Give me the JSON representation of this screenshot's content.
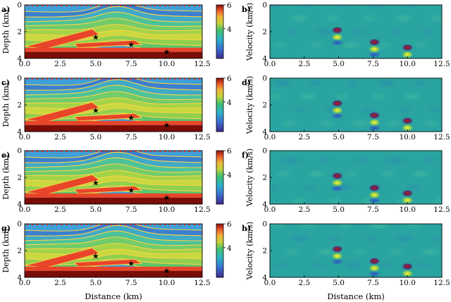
{
  "figure": {
    "colorbar": {
      "ticks": [
        "6",
        "4"
      ],
      "label": "Velocity (km/s)"
    },
    "model_axes": {
      "ylabel": "Depth (km)",
      "xlabel": "Distance (km)",
      "yticks": [
        "0",
        "2",
        "4"
      ],
      "xticks": [
        "0.0",
        "2.5",
        "5.0",
        "7.5",
        "10.0",
        "12.5"
      ]
    },
    "diff_axes": {
      "ylabel": "Velocity (km/s)",
      "xlabel": "Distance (km)",
      "yticks": [
        "0",
        "2",
        "4"
      ],
      "xticks": [
        "0.0",
        "2.5",
        "5.0",
        "7.5",
        "10.0",
        "12.5"
      ]
    },
    "rows": [
      {
        "left_label": "a)",
        "right_label": "b)"
      },
      {
        "left_label": "c)",
        "right_label": "d)"
      },
      {
        "left_label": "e)",
        "right_label": "f)"
      },
      {
        "left_label": "g)",
        "right_label": "h)"
      }
    ],
    "colors": {
      "water": "#3f9fd8",
      "deep": "#7a0d08",
      "diff_bg": "#2aa4a0",
      "source": "#ff2f2f"
    }
  },
  "chart_data": [
    {
      "type": "heatmap",
      "panel": "a",
      "title": "",
      "xlabel": "Distance (km)",
      "ylabel": "Depth (km)",
      "xlim": [
        0,
        12.5
      ],
      "ylim": [
        4,
        0
      ],
      "colorbar": {
        "range": [
          1.5,
          6
        ],
        "ticks": [
          4,
          6
        ],
        "label": "Velocity (km/s)"
      },
      "stars": [
        {
          "x": 5.0,
          "z": 2.4
        },
        {
          "x": 7.5,
          "z": 2.95
        },
        {
          "x": 10.0,
          "z": 3.5
        }
      ]
    },
    {
      "type": "heatmap",
      "panel": "b",
      "title": "",
      "xlabel": "Distance (km)",
      "ylabel": "Velocity (km/s)",
      "xlim": [
        0,
        12.5
      ],
      "ylim": [
        4,
        0
      ],
      "anomalies": [
        {
          "x": 4.9,
          "z": 2.2
        },
        {
          "x": 7.6,
          "z": 3.1
        },
        {
          "x": 10.0,
          "z": 3.5
        }
      ]
    },
    {
      "type": "heatmap",
      "panel": "c",
      "title": "",
      "xlabel": "Distance (km)",
      "ylabel": "Depth (km)",
      "xlim": [
        0,
        12.5
      ],
      "ylim": [
        4,
        0
      ],
      "colorbar": {
        "range": [
          1.5,
          6
        ],
        "ticks": [
          4,
          6
        ],
        "label": "Velocity (km/s)"
      },
      "stars": [
        {
          "x": 5.0,
          "z": 2.4
        },
        {
          "x": 7.5,
          "z": 2.95
        },
        {
          "x": 10.0,
          "z": 3.5
        }
      ]
    },
    {
      "type": "heatmap",
      "panel": "d",
      "title": "",
      "xlabel": "Distance (km)",
      "ylabel": "Velocity (km/s)",
      "xlim": [
        0,
        12.5
      ],
      "ylim": [
        4,
        0
      ],
      "anomalies": [
        {
          "x": 4.9,
          "z": 2.2
        },
        {
          "x": 7.6,
          "z": 3.1
        },
        {
          "x": 10.0,
          "z": 3.5
        }
      ]
    },
    {
      "type": "heatmap",
      "panel": "e",
      "title": "",
      "xlabel": "Distance (km)",
      "ylabel": "Depth (km)",
      "xlim": [
        0,
        12.5
      ],
      "ylim": [
        4,
        0
      ],
      "colorbar": {
        "range": [
          1.5,
          6
        ],
        "ticks": [
          4,
          6
        ],
        "label": "Velocity (km/s)"
      },
      "stars": [
        {
          "x": 5.0,
          "z": 2.4
        },
        {
          "x": 7.5,
          "z": 2.95
        },
        {
          "x": 10.0,
          "z": 3.5
        }
      ]
    },
    {
      "type": "heatmap",
      "panel": "f",
      "title": "",
      "xlabel": "Distance (km)",
      "ylabel": "Velocity (km/s)",
      "xlim": [
        0,
        12.5
      ],
      "ylim": [
        4,
        0
      ],
      "anomalies": [
        {
          "x": 4.9,
          "z": 2.2
        },
        {
          "x": 7.6,
          "z": 3.1
        },
        {
          "x": 10.0,
          "z": 3.5
        }
      ]
    },
    {
      "type": "heatmap",
      "panel": "g",
      "title": "",
      "xlabel": "Distance (km)",
      "ylabel": "Depth (km)",
      "xlim": [
        0,
        12.5
      ],
      "ylim": [
        4,
        0
      ],
      "colorbar": {
        "range": [
          1.5,
          6
        ],
        "ticks": [
          4,
          6
        ],
        "label": "Velocity (km/s)"
      },
      "stars": [
        {
          "x": 5.0,
          "z": 2.4
        },
        {
          "x": 7.5,
          "z": 2.95
        },
        {
          "x": 10.0,
          "z": 3.5
        }
      ]
    },
    {
      "type": "heatmap",
      "panel": "h",
      "title": "",
      "xlabel": "Distance (km)",
      "ylabel": "Velocity (km/s)",
      "xlim": [
        0,
        12.5
      ],
      "ylim": [
        4,
        0
      ],
      "anomalies": [
        {
          "x": 4.9,
          "z": 2.2
        },
        {
          "x": 7.6,
          "z": 3.1
        },
        {
          "x": 10.0,
          "z": 3.5
        }
      ]
    }
  ]
}
